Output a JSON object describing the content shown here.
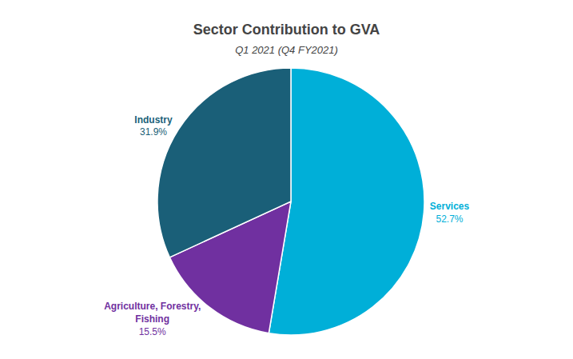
{
  "chart_data": {
    "type": "pie",
    "title": "Sector Contribution to GVA",
    "subtitle": "Q1 2021 (Q4 FY2021)",
    "categories": [
      "Services",
      "Agriculture, Forestry,\nFishing",
      "Industry"
    ],
    "values": [
      52.7,
      15.5,
      31.9
    ],
    "value_labels": [
      "52.7%",
      "15.5%",
      "31.9%"
    ],
    "colors": [
      "#00afd8",
      "#7030a0",
      "#1a5f78"
    ],
    "data_labels": true,
    "legend": false
  }
}
